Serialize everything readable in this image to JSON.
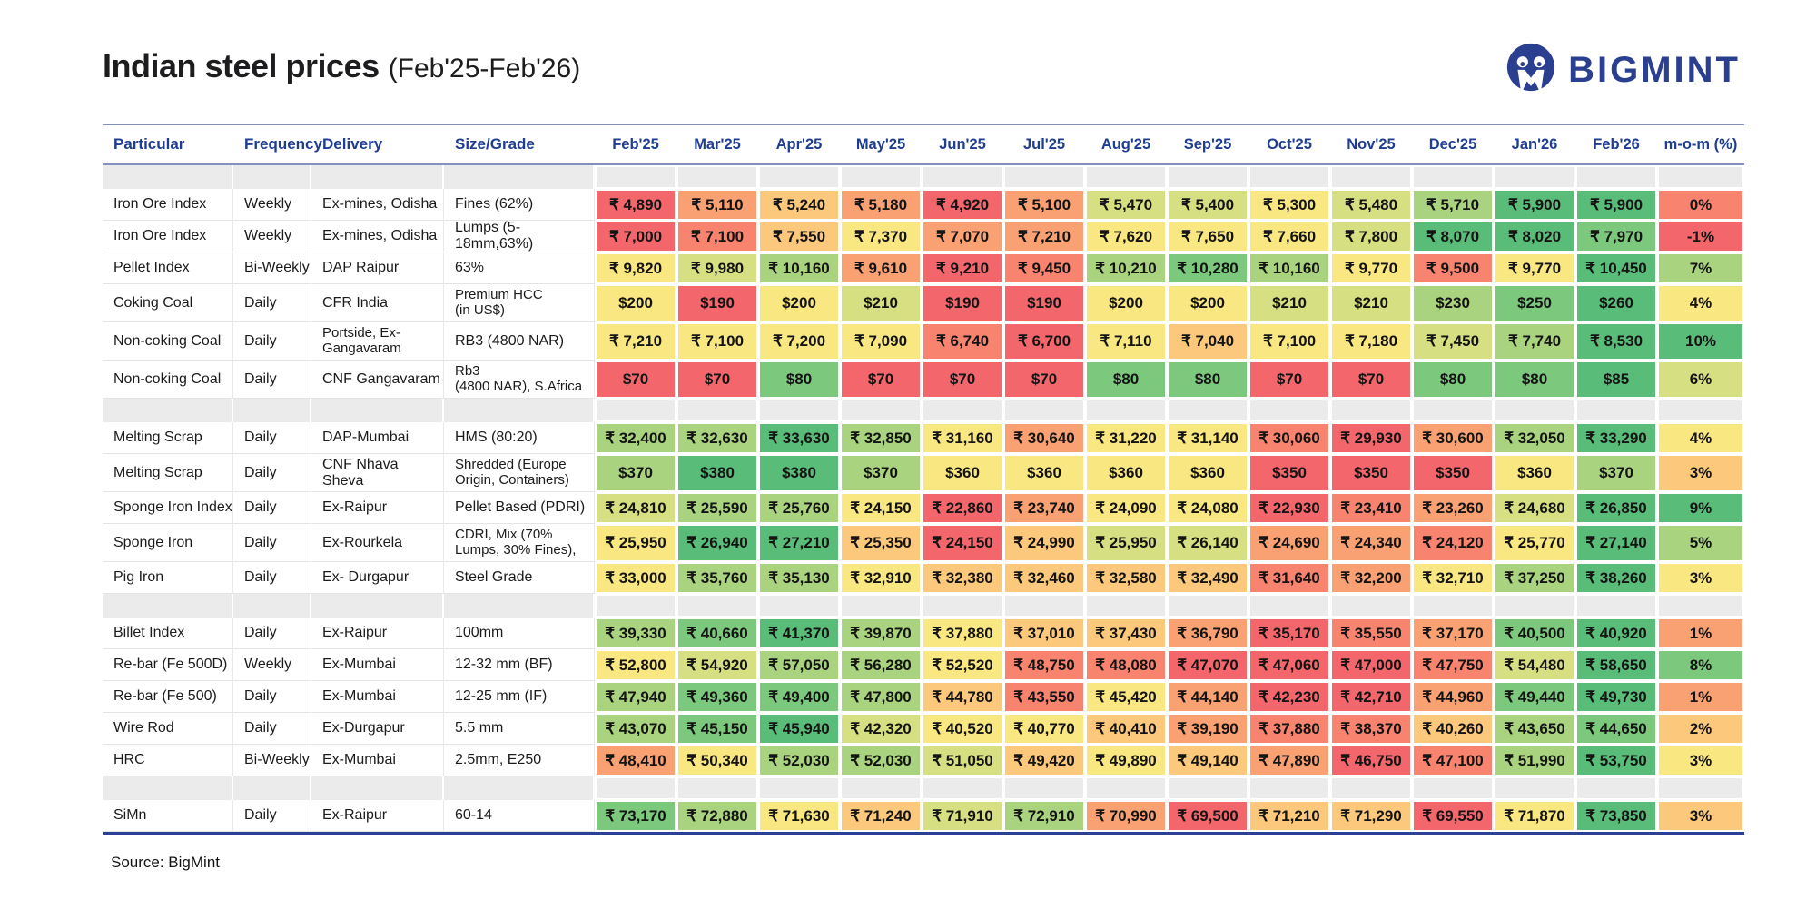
{
  "page": {
    "title": "Indian steel prices",
    "subtitle": "(Feb'25-Feb'26)",
    "source_note": "Source: BigMint",
    "brand": {
      "name": "BIGMINT",
      "color": "#2b3f91"
    }
  },
  "heat_palette": {
    "R": "#f3666c",
    "S": "#f8836f",
    "O": "#f9a172",
    "LO": "#fbc87c",
    "Y": "#f9e781",
    "YG": "#d6df81",
    "LG": "#aad37f",
    "G": "#7cc87d",
    "DG": "#5abc79"
  },
  "table_style": {
    "header_text_color": "#1f3d91",
    "rule_color": "#8091c2",
    "bottom_rule_color": "#2b4196",
    "gap_row_color": "#ebebeb"
  },
  "chart_data": {
    "type": "table",
    "title": "Indian steel prices (Feb'25-Feb'26)",
    "label_columns": [
      "Particular",
      "Frequency",
      "Delivery",
      "Size/Grade"
    ],
    "month_columns": [
      "Feb'25",
      "Mar'25",
      "Apr'25",
      "May'25",
      "Jun'25",
      "Jul'25",
      "Aug'25",
      "Sep'25",
      "Oct'25",
      "Nov'25",
      "Dec'25",
      "Jan'26",
      "Feb'26"
    ],
    "mom_column": "m-o-m (%)",
    "rows": [
      {
        "section": 1,
        "particular": "Iron Ore Index",
        "frequency": "Weekly",
        "delivery": "Ex-mines, Odisha",
        "size": "Fines (62%)",
        "currency": "INR",
        "values": [
          4890,
          5110,
          5240,
          5180,
          4920,
          5100,
          5470,
          5400,
          5300,
          5480,
          5710,
          5900,
          5900
        ],
        "colors": [
          "R",
          "O",
          "LO",
          "O",
          "R",
          "O",
          "YG",
          "YG",
          "Y",
          "YG",
          "LG",
          "DG",
          "DG"
        ],
        "mom": "0%",
        "mom_color": "S"
      },
      {
        "section": 1,
        "particular": "Iron Ore Index",
        "frequency": "Weekly",
        "delivery": "Ex-mines, Odisha",
        "size": "Lumps (5-18mm,63%)",
        "currency": "INR",
        "values": [
          7000,
          7100,
          7550,
          7370,
          7070,
          7210,
          7620,
          7650,
          7660,
          7800,
          8070,
          8020,
          7970
        ],
        "colors": [
          "R",
          "S",
          "LO",
          "Y",
          "O",
          "O",
          "Y",
          "Y",
          "Y",
          "YG",
          "DG",
          "DG",
          "G"
        ],
        "mom": "-1%",
        "mom_color": "R"
      },
      {
        "section": 1,
        "particular": "Pellet Index",
        "frequency": "Bi-Weekly",
        "delivery": "DAP Raipur",
        "size": "63%",
        "currency": "INR",
        "values": [
          9820,
          9980,
          10160,
          9610,
          9210,
          9450,
          10210,
          10280,
          10160,
          9770,
          9500,
          9770,
          10450
        ],
        "colors": [
          "Y",
          "YG",
          "LG",
          "O",
          "R",
          "S",
          "LG",
          "G",
          "LG",
          "Y",
          "S",
          "Y",
          "DG"
        ],
        "mom": "7%",
        "mom_color": "LG"
      },
      {
        "section": 1,
        "particular": "Coking Coal",
        "frequency": "Daily",
        "delivery": "CFR India",
        "size": "Premium HCC\n(in US$)",
        "currency": "USD",
        "values": [
          200,
          190,
          200,
          210,
          190,
          190,
          200,
          200,
          210,
          210,
          230,
          250,
          260
        ],
        "colors": [
          "Y",
          "R",
          "Y",
          "YG",
          "R",
          "R",
          "Y",
          "Y",
          "YG",
          "YG",
          "LG",
          "G",
          "DG"
        ],
        "mom": "4%",
        "mom_color": "Y"
      },
      {
        "section": 1,
        "particular": "Non-coking Coal",
        "frequency": "Daily",
        "delivery": "Portside, Ex-\nGangavaram",
        "size": "RB3 (4800 NAR)",
        "currency": "INR",
        "values": [
          7210,
          7100,
          7200,
          7090,
          6740,
          6700,
          7110,
          7040,
          7100,
          7180,
          7450,
          7740,
          8530
        ],
        "colors": [
          "Y",
          "Y",
          "Y",
          "Y",
          "S",
          "R",
          "Y",
          "LO",
          "Y",
          "Y",
          "YG",
          "LG",
          "DG"
        ],
        "mom": "10%",
        "mom_color": "DG"
      },
      {
        "section": 1,
        "particular": "Non-coking Coal",
        "frequency": "Daily",
        "delivery": "CNF Gangavaram",
        "size": "Rb3\n(4800 NAR), S.Africa",
        "currency": "USD",
        "values": [
          70,
          70,
          80,
          70,
          70,
          70,
          80,
          80,
          70,
          70,
          80,
          80,
          85
        ],
        "colors": [
          "R",
          "R",
          "G",
          "R",
          "R",
          "R",
          "G",
          "G",
          "R",
          "R",
          "G",
          "G",
          "DG"
        ],
        "mom": "6%",
        "mom_color": "YG"
      },
      {
        "section": 2,
        "particular": "Melting Scrap",
        "frequency": "Daily",
        "delivery": "DAP-Mumbai",
        "size": "HMS (80:20)",
        "currency": "INR",
        "values": [
          32400,
          32630,
          33630,
          32850,
          31160,
          30640,
          31220,
          31140,
          30060,
          29930,
          30600,
          32050,
          33290
        ],
        "colors": [
          "LG",
          "LG",
          "DG",
          "LG",
          "Y",
          "O",
          "Y",
          "Y",
          "S",
          "R",
          "O",
          "LG",
          "DG"
        ],
        "mom": "4%",
        "mom_color": "Y"
      },
      {
        "section": 2,
        "particular": "Melting Scrap",
        "frequency": "Daily",
        "delivery": "CNF Nhava Sheva",
        "size": "Shredded (Europe\nOrigin, Containers)",
        "currency": "USD",
        "values": [
          370,
          380,
          380,
          370,
          360,
          360,
          360,
          360,
          350,
          350,
          350,
          360,
          370
        ],
        "colors": [
          "LG",
          "DG",
          "DG",
          "LG",
          "Y",
          "Y",
          "Y",
          "Y",
          "R",
          "R",
          "R",
          "Y",
          "LG"
        ],
        "mom": "3%",
        "mom_color": "LO"
      },
      {
        "section": 2,
        "particular": "Sponge Iron Index",
        "frequency": "Daily",
        "delivery": "Ex-Raipur",
        "size": "Pellet Based (PDRI)",
        "currency": "INR",
        "values": [
          24810,
          25590,
          25760,
          24150,
          22860,
          23740,
          24090,
          24080,
          22930,
          23410,
          23260,
          24680,
          26850
        ],
        "colors": [
          "YG",
          "LG",
          "LG",
          "Y",
          "R",
          "O",
          "Y",
          "Y",
          "R",
          "S",
          "O",
          "YG",
          "DG"
        ],
        "mom": "9%",
        "mom_color": "DG"
      },
      {
        "section": 2,
        "particular": "Sponge Iron",
        "frequency": "Daily",
        "delivery": "Ex-Rourkela",
        "size": "CDRI, Mix (70%\nLumps, 30% Fines),",
        "currency": "INR",
        "values": [
          25950,
          26940,
          27210,
          25350,
          24150,
          24990,
          25950,
          26140,
          24690,
          24340,
          24120,
          25770,
          27140
        ],
        "colors": [
          "Y",
          "DG",
          "DG",
          "LO",
          "R",
          "LO",
          "YG",
          "YG",
          "O",
          "O",
          "S",
          "Y",
          "DG"
        ],
        "mom": "5%",
        "mom_color": "LG"
      },
      {
        "section": 2,
        "particular": "Pig Iron",
        "frequency": "Daily",
        "delivery": "Ex- Durgapur",
        "size": "Steel Grade",
        "currency": "INR",
        "values": [
          33000,
          35760,
          35130,
          32910,
          32380,
          32460,
          32580,
          32490,
          31640,
          32200,
          32710,
          37250,
          38260
        ],
        "colors": [
          "Y",
          "LG",
          "LG",
          "Y",
          "LO",
          "LO",
          "LO",
          "LO",
          "S",
          "O",
          "Y",
          "LG",
          "DG"
        ],
        "mom": "3%",
        "mom_color": "Y"
      },
      {
        "section": 3,
        "particular": "Billet Index",
        "frequency": "Daily",
        "delivery": "Ex-Raipur",
        "size": "100mm",
        "currency": "INR",
        "values": [
          39330,
          40660,
          41370,
          39870,
          37880,
          37010,
          37430,
          36790,
          35170,
          35550,
          37170,
          40500,
          40920
        ],
        "colors": [
          "LG",
          "G",
          "DG",
          "LG",
          "Y",
          "LO",
          "LO",
          "O",
          "R",
          "S",
          "O",
          "G",
          "DG"
        ],
        "mom": "1%",
        "mom_color": "O"
      },
      {
        "section": 3,
        "particular": "Re-bar (Fe 500D)",
        "frequency": "Weekly",
        "delivery": "Ex-Mumbai",
        "size": "12-32 mm (BF)",
        "currency": "INR",
        "values": [
          52800,
          54920,
          57050,
          56280,
          52520,
          48750,
          48080,
          47070,
          47060,
          47000,
          47750,
          54480,
          58650
        ],
        "colors": [
          "Y",
          "YG",
          "LG",
          "LG",
          "Y",
          "S",
          "S",
          "R",
          "R",
          "R",
          "S",
          "YG",
          "DG"
        ],
        "mom": "8%",
        "mom_color": "G"
      },
      {
        "section": 3,
        "particular": "Re-bar (Fe 500)",
        "frequency": "Daily",
        "delivery": "Ex-Mumbai",
        "size": "12-25 mm (IF)",
        "currency": "INR",
        "values": [
          47940,
          49360,
          49400,
          47800,
          44780,
          43550,
          45420,
          44140,
          42230,
          42710,
          44960,
          49440,
          49730
        ],
        "colors": [
          "LG",
          "G",
          "G",
          "LG",
          "LO",
          "S",
          "Y",
          "O",
          "R",
          "R",
          "O",
          "G",
          "DG"
        ],
        "mom": "1%",
        "mom_color": "O"
      },
      {
        "section": 3,
        "particular": "Wire Rod",
        "frequency": "Daily",
        "delivery": "Ex-Durgapur",
        "size": "5.5 mm",
        "currency": "INR",
        "values": [
          43070,
          45150,
          45940,
          42320,
          40520,
          40770,
          40410,
          39190,
          37880,
          38370,
          40260,
          43650,
          44650
        ],
        "colors": [
          "LG",
          "G",
          "DG",
          "YG",
          "Y",
          "Y",
          "LO",
          "O",
          "S",
          "S",
          "LO",
          "LG",
          "G"
        ],
        "mom": "2%",
        "mom_color": "LO"
      },
      {
        "section": 3,
        "particular": "HRC",
        "frequency": "Bi-Weekly",
        "delivery": "Ex-Mumbai",
        "size": "2.5mm, E250",
        "currency": "INR",
        "values": [
          48410,
          50340,
          52030,
          52030,
          51050,
          49420,
          49890,
          49140,
          47890,
          46750,
          47100,
          51990,
          53750
        ],
        "colors": [
          "O",
          "Y",
          "LG",
          "LG",
          "YG",
          "LO",
          "Y",
          "LO",
          "O",
          "R",
          "S",
          "LG",
          "DG"
        ],
        "mom": "3%",
        "mom_color": "Y"
      },
      {
        "section": 4,
        "particular": "SiMn",
        "frequency": "Daily",
        "delivery": "Ex-Raipur",
        "size": "60-14",
        "currency": "INR",
        "values": [
          73170,
          72880,
          71630,
          71240,
          71910,
          72910,
          70990,
          69500,
          71210,
          71290,
          69550,
          71870,
          73850
        ],
        "colors": [
          "G",
          "LG",
          "Y",
          "LO",
          "YG",
          "LG",
          "O",
          "R",
          "LO",
          "LO",
          "R",
          "Y",
          "DG"
        ],
        "mom": "3%",
        "mom_color": "LO"
      }
    ]
  }
}
